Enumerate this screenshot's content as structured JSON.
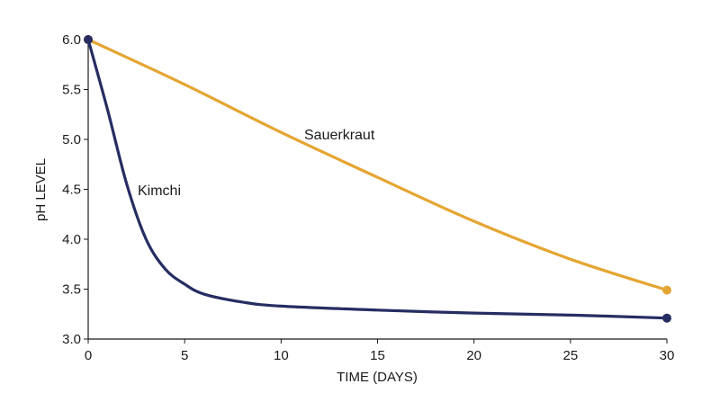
{
  "chart_data": {
    "type": "line",
    "xlabel": "TIME (DAYS)",
    "ylabel": "pH LEVEL",
    "xlim": [
      0,
      30
    ],
    "ylim": [
      3.0,
      6.0
    ],
    "xticks": [
      "0",
      "5",
      "10",
      "15",
      "20",
      "25",
      "30"
    ],
    "yticks": [
      "3.0",
      "3.5",
      "4.0",
      "4.5",
      "5.0",
      "5.5",
      "6.0"
    ],
    "grid": false,
    "series": [
      {
        "name": "Sauerkraut",
        "color": "#E5A532",
        "x": [
          0,
          5,
          10,
          15,
          20,
          25,
          30
        ],
        "y": [
          6.0,
          5.55,
          5.07,
          4.62,
          4.18,
          3.8,
          3.49
        ]
      },
      {
        "name": "Kimchi",
        "color": "#262D62",
        "x": [
          0,
          1,
          2,
          3,
          4,
          5,
          6,
          8,
          10,
          15,
          20,
          25,
          30
        ],
        "y": [
          6.0,
          5.3,
          4.55,
          4.0,
          3.7,
          3.55,
          3.45,
          3.37,
          3.33,
          3.29,
          3.26,
          3.24,
          3.21
        ]
      }
    ]
  }
}
